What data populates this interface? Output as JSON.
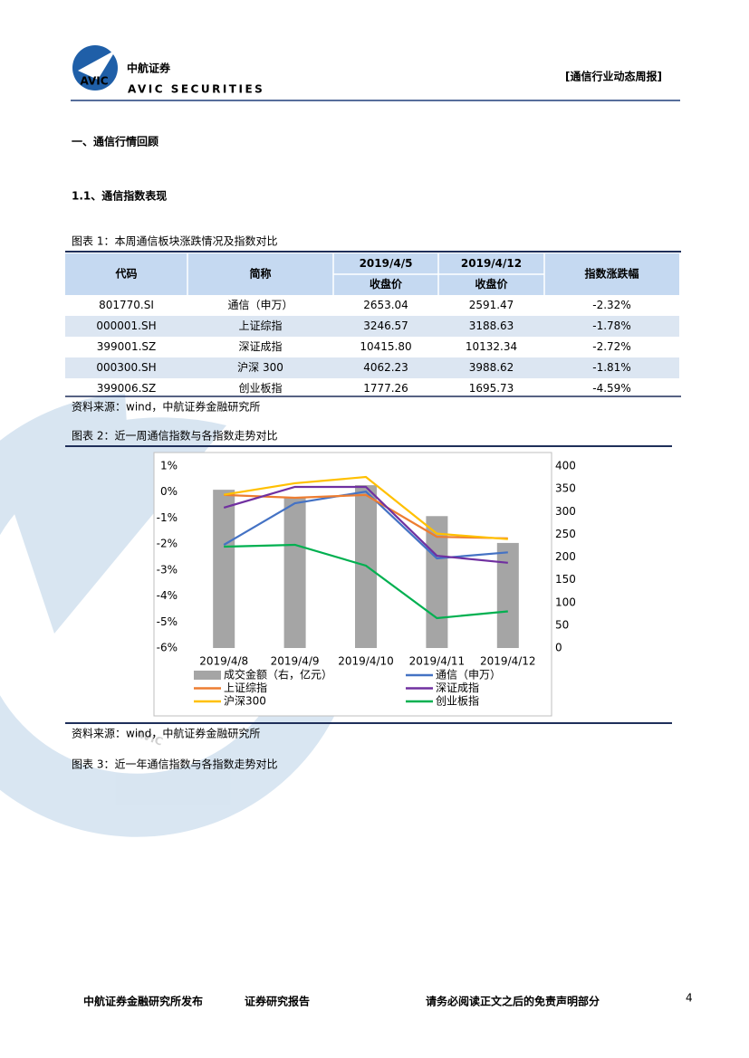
{
  "header": {
    "logo_badge": "AVIC",
    "brand": "中航证券",
    "brand_en": "AVIC SECURITIES",
    "report_type": "[通信行业动态周报]"
  },
  "watermark": "AVIC",
  "section_title": "一、通信行情回顾",
  "subsection_title": "1.1、通信指数表现",
  "figure1": {
    "caption": "图表 1：本周通信板块涨跌情况及指数对比",
    "table": {
      "header": [
        "代码",
        "简称",
        "2019/4/5",
        "2019/4/12",
        "指数涨跌幅"
      ],
      "subheader": [
        "收盘价",
        "收盘价"
      ],
      "rows": [
        [
          "801770.SI",
          "通信（申万）",
          "2653.04",
          "2591.47",
          "-2.32%"
        ],
        [
          "000001.SH",
          "上证综指",
          "3246.57",
          "3188.63",
          "-1.78%"
        ],
        [
          "399001.SZ",
          "深证成指",
          "10415.80",
          "10132.34",
          "-2.72%"
        ],
        [
          "000300.SH",
          "沪深 300",
          "4062.23",
          "3988.62",
          "-1.81%"
        ],
        [
          "399006.SZ",
          "创业板指",
          "1777.26",
          "1695.73",
          "-4.59%"
        ]
      ]
    },
    "source": "资料来源：wind，中航证券金融研究所"
  },
  "figure2": {
    "caption": "图表 2：近一周通信指数与各指数走势对比",
    "source": "资料来源：wind，中航证券金融研究所"
  },
  "chart_data": {
    "type": "bar-line",
    "categories": [
      "2019/4/8",
      "2019/4/9",
      "2019/4/10",
      "2019/4/11",
      "2019/4/12"
    ],
    "ylim": [
      -6,
      1
    ],
    "yticks": [
      {
        "value": 1,
        "label": "1%"
      },
      {
        "value": 0,
        "label": "0%"
      },
      {
        "value": -1,
        "label": "-1%"
      },
      {
        "value": -2,
        "label": "-2%"
      },
      {
        "value": -3,
        "label": "-3%"
      },
      {
        "value": -4,
        "label": "-4%"
      },
      {
        "value": -5,
        "label": "-5%"
      },
      {
        "value": -6,
        "label": "-6%"
      }
    ],
    "y2lim": [
      0,
      400
    ],
    "y2ticks": [
      400,
      350,
      300,
      250,
      200,
      150,
      100,
      50,
      0
    ],
    "series": [
      {
        "name": "成交金额（右，亿元）",
        "type": "bar",
        "axis": "y2",
        "color": "#a5a5a5",
        "values": [
          348,
          330,
          358,
          290,
          231
        ]
      },
      {
        "name": "通信（申万）",
        "type": "line",
        "color": "#4472c4",
        "values": [
          -2.03,
          -0.43,
          0.02,
          -2.55,
          -2.32
        ]
      },
      {
        "name": "上证综指",
        "type": "line",
        "color": "#ed7d31",
        "values": [
          -0.11,
          -0.22,
          -0.11,
          -1.72,
          -1.78
        ]
      },
      {
        "name": "深证成指",
        "type": "line",
        "color": "#7030a0",
        "values": [
          -0.6,
          0.2,
          0.2,
          -2.45,
          -2.72
        ]
      },
      {
        "name": "沪深300",
        "type": "line",
        "color": "#ffc000",
        "values": [
          -0.1,
          0.34,
          0.58,
          -1.6,
          -1.81
        ]
      },
      {
        "name": "创业板指",
        "type": "line",
        "color": "#00b050",
        "values": [
          -2.1,
          -2.03,
          -2.83,
          -4.85,
          -4.59
        ]
      }
    ]
  },
  "figure3": {
    "caption": "图表 3：近一年通信指数与各指数走势对比"
  },
  "footer": {
    "publisher": "中航证券金融研究所发布",
    "doc_type": "证券研究报告",
    "disclaimer": "请务必阅读正文之后的免责声明部分",
    "page": "4"
  }
}
